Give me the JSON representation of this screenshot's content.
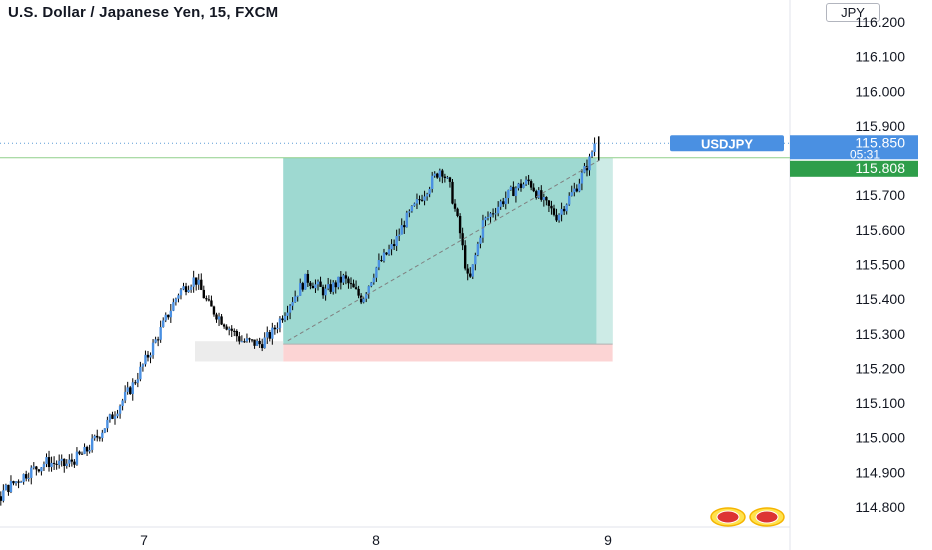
{
  "header": {
    "title": "U.S. Dollar / Japanese Yen, 15, FXCM",
    "currency": "JPY"
  },
  "colors": {
    "profit_zone": "#9ed9d1",
    "loss_zone": "#fcd4d4",
    "price_line": "#5b9bd5",
    "entry_line": "#8fcf8a",
    "symbol_badge": "#4a90e2",
    "current_badge": "#4a90e2",
    "target_badge": "#2e9e4a",
    "candle": "#000000",
    "candle_up": "#4a90e2"
  },
  "chart_data": {
    "type": "candlestick",
    "symbol": "USDJPY",
    "interval": "15",
    "source": "FXCM",
    "ylim": [
      114.75,
      116.25
    ],
    "y_ticks": [
      "116.200",
      "116.100",
      "116.000",
      "115.900",
      "115.700",
      "115.600",
      "115.500",
      "115.400",
      "115.300",
      "115.200",
      "115.100",
      "115.000",
      "114.900",
      "114.800"
    ],
    "x_ticks": [
      "7",
      "8",
      "9"
    ],
    "current_price": {
      "label": "USDJPY",
      "value": "115.850",
      "countdown": "05:31"
    },
    "target_price": "115.808",
    "price_path": [
      [
        0,
        115.44
      ],
      [
        0.08,
        115.42
      ],
      [
        0.16,
        115.46
      ],
      [
        0.22,
        115.4
      ],
      [
        0.24,
        115.05
      ],
      [
        0.28,
        114.85
      ],
      [
        0.34,
        114.78
      ],
      [
        0.4,
        114.85
      ],
      [
        0.5,
        114.9
      ],
      [
        0.58,
        114.93
      ],
      [
        0.66,
        114.92
      ],
      [
        0.75,
        114.96
      ],
      [
        0.85,
        115.05
      ],
      [
        0.95,
        115.15
      ],
      [
        1.05,
        115.28
      ],
      [
        1.15,
        115.42
      ],
      [
        1.22,
        115.46
      ],
      [
        1.28,
        115.38
      ],
      [
        1.35,
        115.33
      ],
      [
        1.42,
        115.28
      ],
      [
        1.5,
        115.27
      ],
      [
        1.55,
        115.3
      ],
      [
        1.62,
        115.38
      ],
      [
        1.7,
        115.46
      ],
      [
        1.78,
        115.42
      ],
      [
        1.86,
        115.46
      ],
      [
        1.94,
        115.4
      ],
      [
        2.0,
        115.49
      ],
      [
        2.08,
        115.56
      ],
      [
        2.12,
        115.62
      ],
      [
        2.2,
        115.7
      ],
      [
        2.28,
        115.78
      ],
      [
        2.32,
        115.72
      ],
      [
        2.36,
        115.6
      ],
      [
        2.4,
        115.44
      ],
      [
        2.46,
        115.62
      ],
      [
        2.54,
        115.68
      ],
      [
        2.6,
        115.72
      ],
      [
        2.66,
        115.74
      ],
      [
        2.72,
        115.68
      ],
      [
        2.78,
        115.64
      ],
      [
        2.86,
        115.72
      ],
      [
        2.92,
        115.8
      ],
      [
        2.95,
        115.87
      ]
    ],
    "position": {
      "type": "long",
      "x_start": 1.6,
      "x_end": 3.02,
      "entry": 115.27,
      "stop": 115.22,
      "target": 115.808
    }
  }
}
